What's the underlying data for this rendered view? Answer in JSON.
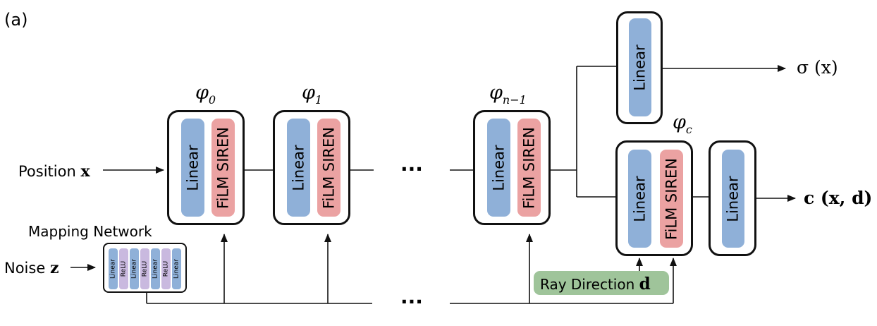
{
  "panel_label": "(a)",
  "colors": {
    "linear": "#8fb0d8",
    "film": "#eba2a2",
    "relu": "#c9b9df",
    "ray": "#9fc49a"
  },
  "inputs": {
    "position": {
      "text": "Position",
      "var": "x"
    },
    "noise": {
      "text": "Noise",
      "var": "z"
    }
  },
  "mapping_network": {
    "title": "Mapping Network",
    "layers": [
      "Linear",
      "ReLU",
      "Linear",
      "ReLU",
      "Linear",
      "ReLU",
      "Linear"
    ]
  },
  "blocks": [
    {
      "base": "φ",
      "sub": "0",
      "linear": "Linear",
      "film": "FiLM SIREN"
    },
    {
      "base": "φ",
      "sub": "1",
      "linear": "Linear",
      "film": "FiLM SIREN"
    },
    {
      "base": "φ",
      "sub": "n−1",
      "linear": "Linear",
      "film": "FiLM SIREN"
    }
  ],
  "ellipsis": "···",
  "density_head": {
    "linear": "Linear",
    "output": "σ (x)"
  },
  "color_block": {
    "base": "φ",
    "sub": "c",
    "linear": "Linear",
    "film": "FiLM SIREN"
  },
  "color_head": {
    "linear": "Linear",
    "output": "c (x, d)"
  },
  "ray_direction": {
    "text": "Ray Direction",
    "var": "d"
  }
}
